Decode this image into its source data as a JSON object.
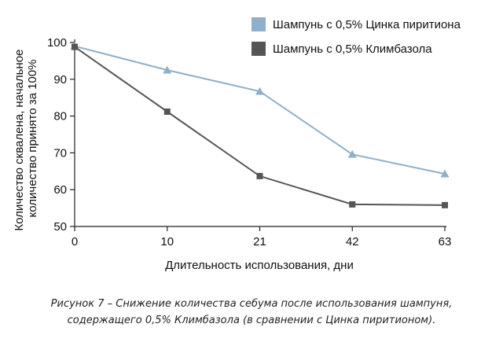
{
  "chart_data": {
    "type": "line",
    "x": [
      0,
      10,
      21,
      42,
      63
    ],
    "xlabel": "Длительность использования, дни",
    "ylabel_lines": [
      "Количество сквалена, начальное",
      "количество принято за 100%"
    ],
    "ylim": [
      50,
      100
    ],
    "yticks": [
      50,
      60,
      70,
      80,
      90,
      100
    ],
    "grid": false,
    "legend_position": "top-right",
    "series": [
      {
        "name": "Шампунь с 0,5% Цинка пиритиона",
        "values": [
          99,
          92.5,
          86.7,
          69.6,
          64.3
        ],
        "color": "#8fb0c8",
        "marker": "triangle"
      },
      {
        "name": "Шампунь с 0,5% Климбазола",
        "values": [
          98.8,
          81.2,
          63.7,
          56,
          55.8
        ],
        "color": "#555555",
        "marker": "square"
      }
    ]
  },
  "caption": {
    "line1": "Рисунок 7 – Снижение количества себума после использования шампуня,",
    "line2": "содержащего 0,5% Климбазола (в сравнении с Цинка пиритионом)."
  }
}
